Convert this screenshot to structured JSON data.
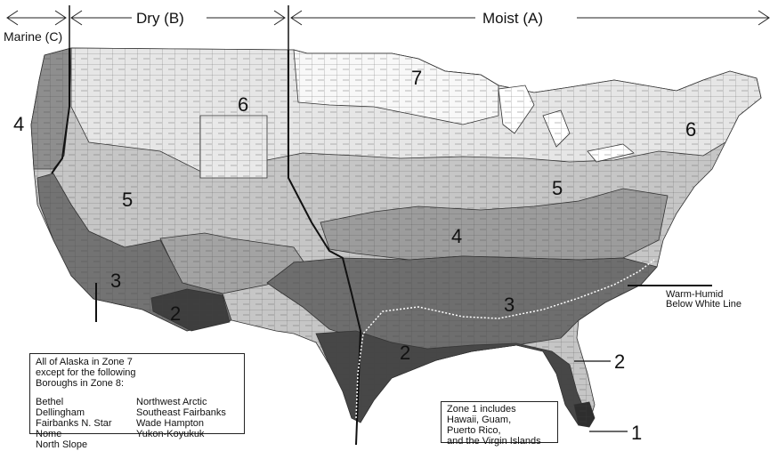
{
  "climate_categories": {
    "marine": "Marine (C)",
    "dry": "Dry (B)",
    "moist": "Moist (A)"
  },
  "zone_labels": {
    "z1": "1",
    "z2_west": "2",
    "z2_east": "2",
    "z2_fl": "2",
    "z3_west": "3",
    "z3_east": "3",
    "z4_west": "4",
    "z4_east": "4",
    "z5_west": "5",
    "z5_east": "5",
    "z6_west": "6",
    "z6_east": "6",
    "z7": "7"
  },
  "warm_humid": {
    "line1": "Warm-Humid",
    "line2": "Below White Line"
  },
  "alaska_note": {
    "line1": "All of Alaska in Zone 7",
    "line2": "except for the following",
    "line3": "Boroughs in Zone 8:",
    "left_col": [
      "Bethel",
      "Dellingham",
      "Fairbanks N. Star",
      "Nome",
      "North Slope"
    ],
    "right_col": [
      "Northwest Arctic",
      "Southeast Fairbanks",
      "Wade Hampton",
      "Yukon-Koyukuk"
    ]
  },
  "zone1_note": {
    "line1": "Zone 1 includes",
    "line2": "Hawaii, Guam,",
    "line3": "Puerto Rico,",
    "line4": "and the Virgin Islands"
  },
  "zone_shades": {
    "zone1": "#3a3a3a",
    "zone2": "#424242",
    "zone3": "#6e6e6e",
    "zone4": "#9c9c9c",
    "zone5": "#c6c6c6",
    "zone6": "#e2e2e2",
    "zone7": "#f7f7f7"
  }
}
